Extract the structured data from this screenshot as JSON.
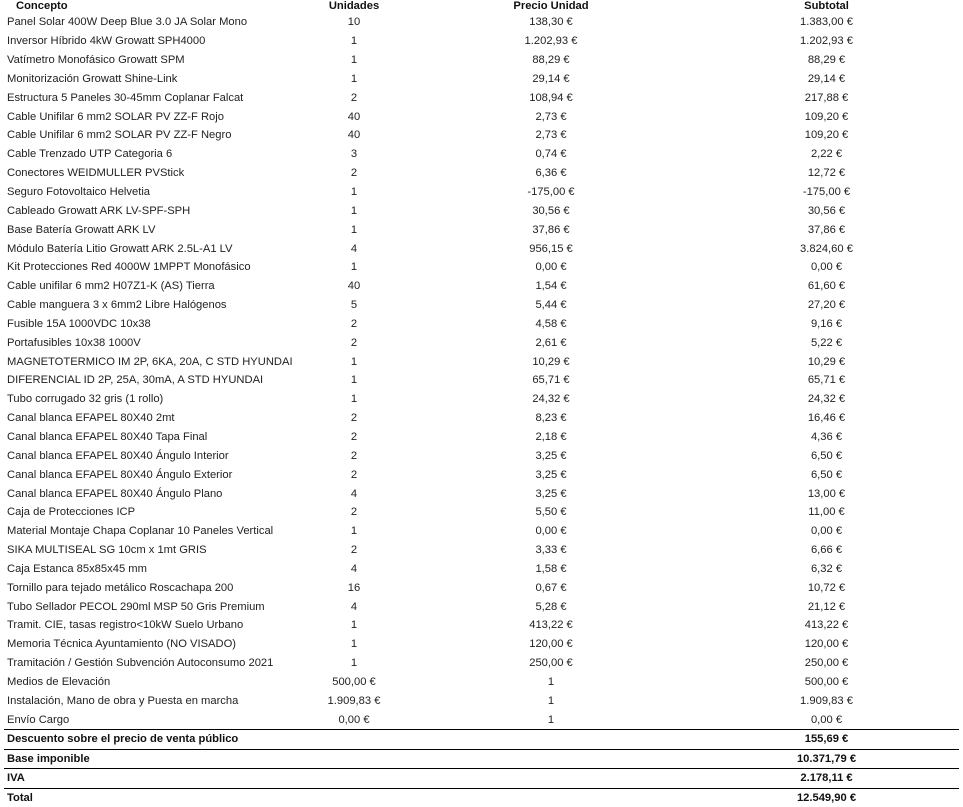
{
  "headers": {
    "concept": "Concepto",
    "units": "Unidades",
    "unit_price": "Precio Unidad",
    "subtotal": "Subtotal"
  },
  "items": [
    {
      "concept": "Panel Solar 400W Deep Blue 3.0 JA Solar Mono",
      "units": "10",
      "price": "138,30 €",
      "subtotal": "1.383,00 €"
    },
    {
      "concept": "Inversor Híbrido 4kW Growatt SPH4000",
      "units": "1",
      "price": "1.202,93 €",
      "subtotal": "1.202,93 €"
    },
    {
      "concept": "Vatímetro Monofásico Growatt SPM",
      "units": "1",
      "price": "88,29 €",
      "subtotal": "88,29 €"
    },
    {
      "concept": "Monitorización Growatt Shine-Link",
      "units": "1",
      "price": "29,14 €",
      "subtotal": "29,14 €"
    },
    {
      "concept": "Estructura 5 Paneles 30-45mm Coplanar Falcat",
      "units": "2",
      "price": "108,94 €",
      "subtotal": "217,88 €"
    },
    {
      "concept": "Cable Unifilar 6 mm2 SOLAR PV ZZ-F Rojo",
      "units": "40",
      "price": "2,73 €",
      "subtotal": "109,20 €"
    },
    {
      "concept": "Cable Unifilar 6 mm2 SOLAR PV ZZ-F Negro",
      "units": "40",
      "price": "2,73 €",
      "subtotal": "109,20 €"
    },
    {
      "concept": "Cable Trenzado UTP Categoria 6",
      "units": "3",
      "price": "0,74 €",
      "subtotal": "2,22 €"
    },
    {
      "concept": "Conectores WEIDMULLER PVStick",
      "units": "2",
      "price": "6,36 €",
      "subtotal": "12,72 €"
    },
    {
      "concept": "Seguro Fotovoltaico Helvetia",
      "units": "1",
      "price": "-175,00 €",
      "subtotal": "-175,00 €"
    },
    {
      "concept": "Cableado Growatt ARK LV-SPF-SPH",
      "units": "1",
      "price": "30,56 €",
      "subtotal": "30,56 €"
    },
    {
      "concept": "Base Batería Growatt ARK LV",
      "units": "1",
      "price": "37,86 €",
      "subtotal": "37,86 €"
    },
    {
      "concept": "Módulo Batería Litio Growatt ARK 2.5L-A1 LV",
      "units": "4",
      "price": "956,15 €",
      "subtotal": "3.824,60 €"
    },
    {
      "concept": "Kit Protecciones Red 4000W 1MPPT Monofásico",
      "units": "1",
      "price": "0,00 €",
      "subtotal": "0,00 €"
    },
    {
      "concept": "Cable unifilar 6 mm2 H07Z1-K (AS) Tierra",
      "units": "40",
      "price": "1,54 €",
      "subtotal": "61,60 €"
    },
    {
      "concept": "Cable manguera 3 x 6mm2 Libre Halógenos",
      "units": "5",
      "price": "5,44 €",
      "subtotal": "27,20 €"
    },
    {
      "concept": "Fusible 15A 1000VDC 10x38",
      "units": "2",
      "price": "4,58 €",
      "subtotal": "9,16 €"
    },
    {
      "concept": "Portafusibles 10x38 1000V",
      "units": "2",
      "price": "2,61 €",
      "subtotal": "5,22 €"
    },
    {
      "concept": "MAGNETOTERMICO IM 2P, 6KA, 20A, C STD HYUNDAI",
      "units": "1",
      "price": "10,29 €",
      "subtotal": "10,29 €"
    },
    {
      "concept": "DIFERENCIAL ID 2P, 25A, 30mA, A STD HYUNDAI",
      "units": "1",
      "price": "65,71 €",
      "subtotal": "65,71 €"
    },
    {
      "concept": "Tubo corrugado 32 gris (1 rollo)",
      "units": "1",
      "price": "24,32 €",
      "subtotal": "24,32 €"
    },
    {
      "concept": "Canal blanca EFAPEL 80X40 2mt",
      "units": "2",
      "price": "8,23 €",
      "subtotal": "16,46 €"
    },
    {
      "concept": "Canal blanca EFAPEL 80X40 Tapa Final",
      "units": "2",
      "price": "2,18 €",
      "subtotal": "4,36 €"
    },
    {
      "concept": "Canal blanca EFAPEL 80X40 Ángulo Interior",
      "units": "2",
      "price": "3,25 €",
      "subtotal": "6,50 €"
    },
    {
      "concept": "Canal blanca EFAPEL 80X40 Ángulo Exterior",
      "units": "2",
      "price": "3,25 €",
      "subtotal": "6,50 €"
    },
    {
      "concept": "Canal blanca EFAPEL 80X40 Ángulo Plano",
      "units": "4",
      "price": "3,25 €",
      "subtotal": "13,00 €"
    },
    {
      "concept": "Caja de Protecciones ICP",
      "units": "2",
      "price": "5,50 €",
      "subtotal": "11,00 €"
    },
    {
      "concept": "Material Montaje Chapa Coplanar 10 Paneles Vertical",
      "units": "1",
      "price": "0,00 €",
      "subtotal": "0,00 €"
    },
    {
      "concept": "SIKA MULTISEAL SG 10cm x 1mt GRIS",
      "units": "2",
      "price": "3,33 €",
      "subtotal": "6,66 €"
    },
    {
      "concept": "Caja Estanca 85x85x45 mm",
      "units": "4",
      "price": "1,58 €",
      "subtotal": "6,32 €"
    },
    {
      "concept": "Tornillo para tejado metálico Roscachapa 200",
      "units": "16",
      "price": "0,67 €",
      "subtotal": "10,72 €"
    },
    {
      "concept": "Tubo Sellador PECOL 290ml MSP 50 Gris Premium",
      "units": "4",
      "price": "5,28 €",
      "subtotal": "21,12 €"
    },
    {
      "concept": "Tramit. CIE, tasas registro<10kW Suelo Urbano",
      "units": "1",
      "price": "413,22 €",
      "subtotal": "413,22 €"
    },
    {
      "concept": "Memoria Técnica Ayuntamiento (NO VISADO)",
      "units": "1",
      "price": "120,00 €",
      "subtotal": "120,00 €"
    },
    {
      "concept": "Tramitación / Gestión Subvención Autoconsumo 2021",
      "units": "1",
      "price": "250,00 €",
      "subtotal": "250,00 €"
    },
    {
      "concept": "Medios de Elevación",
      "units": "500,00 €",
      "price": "1",
      "subtotal": "500,00 €"
    },
    {
      "concept": "Instalación, Mano de obra y Puesta en marcha",
      "units": "1.909,83 €",
      "price": "1",
      "subtotal": "1.909,83 €"
    },
    {
      "concept": "Envío Cargo",
      "units": "0,00 €",
      "price": "1",
      "subtotal": "0,00 €"
    }
  ],
  "summary": [
    {
      "label": "Descuento sobre el precio de venta público",
      "amount": "155,69 €"
    },
    {
      "label": "Base imponible",
      "amount": "10.371,79 €"
    },
    {
      "label": "IVA",
      "amount": "2.178,11 €"
    },
    {
      "label": "Total",
      "amount": "12.549,90 €"
    }
  ]
}
